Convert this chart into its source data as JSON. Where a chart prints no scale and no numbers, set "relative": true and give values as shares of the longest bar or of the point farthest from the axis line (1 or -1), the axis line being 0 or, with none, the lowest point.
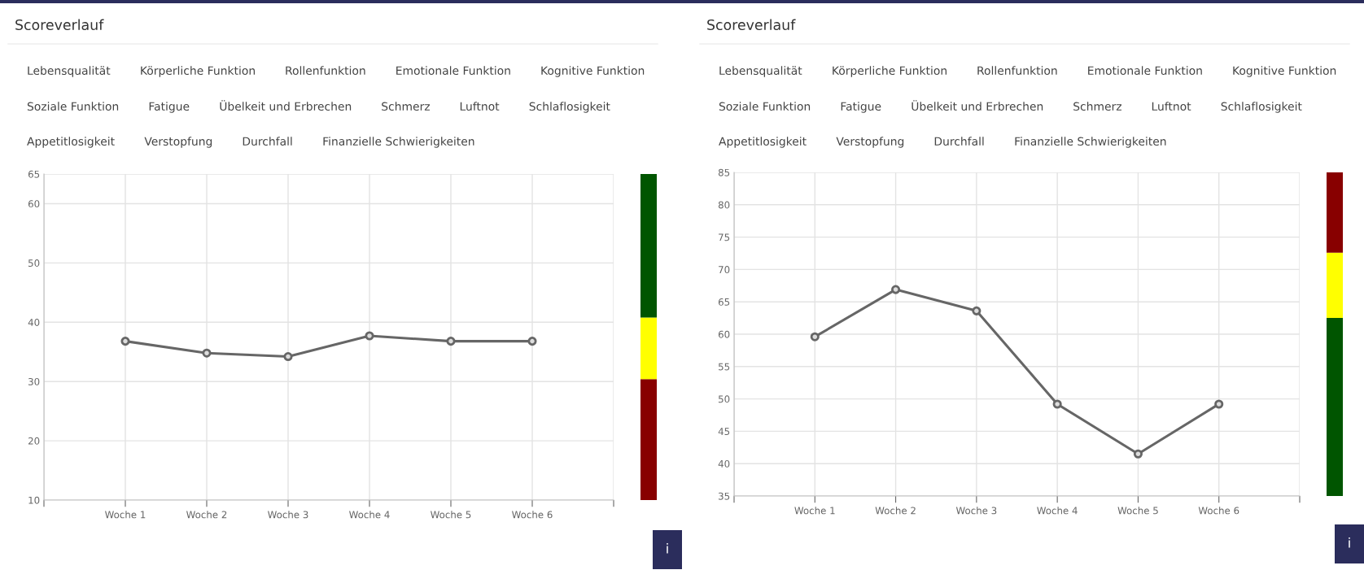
{
  "chart_data": [
    {
      "type": "line",
      "title": "Scoreverlauf",
      "annotations": [
        "Lebensqualität",
        "Körperliche Funktion",
        "Rollenfunktion",
        "Emotionale Funktion",
        "Kognitive Funktion",
        "Soziale Funktion",
        "Fatigue",
        "Übelkeit und Erbrechen",
        "Schmerz",
        "Luftnot",
        "Schlaflosigkeit",
        "Appetitlosigkeit",
        "Verstopfung",
        "Durchfall",
        "Finanzielle Schwierigkeiten",
        "i"
      ],
      "categories": [
        null,
        "Woche 1",
        "Woche 2",
        "Woche 3",
        "Woche 4",
        "Woche 5",
        "Woche 6",
        null
      ],
      "series": [
        {
          "color": "#666666",
          "values": [
            null,
            36.8,
            34.8,
            34.2,
            37.7,
            36.8,
            36.8,
            null
          ]
        }
      ],
      "ylim": [
        10,
        65
      ],
      "yticks": [
        10,
        20,
        30,
        40,
        50,
        60,
        65
      ],
      "grid": true,
      "marker": "circle",
      "line_style": "solid"
    },
    {
      "type": "bar",
      "stacked": true,
      "relative": true,
      "categories": [
        null
      ],
      "series": [
        {
          "color": "#880000",
          "values": [
            0.371
          ]
        },
        {
          "color": "#ffff00",
          "values": [
            0.189
          ]
        },
        {
          "color": "#005500",
          "values": [
            0.44
          ]
        }
      ]
    },
    {
      "type": "line",
      "title": "Scoreverlauf",
      "annotations": [
        "Lebensqualität",
        "Körperliche Funktion",
        "Rollenfunktion",
        "Emotionale Funktion",
        "Kognitive Funktion",
        "Soziale Funktion",
        "Fatigue",
        "Übelkeit und Erbrechen",
        "Schmerz",
        "Luftnot",
        "Schlaflosigkeit",
        "Appetitlosigkeit",
        "Verstopfung",
        "Durchfall",
        "Finanzielle Schwierigkeiten",
        "i"
      ],
      "categories": [
        null,
        "Woche 1",
        "Woche 2",
        "Woche 3",
        "Woche 4",
        "Woche 5",
        "Woche 6",
        null
      ],
      "series": [
        {
          "color": "#666666",
          "values": [
            null,
            59.6,
            66.9,
            63.6,
            49.2,
            41.5,
            49.2,
            null
          ]
        }
      ],
      "ylim": [
        35,
        85
      ],
      "yticks": [
        35,
        40,
        45,
        50,
        55,
        60,
        65,
        70,
        75,
        80,
        85
      ],
      "grid": true,
      "marker": "circle",
      "line_style": "solid"
    },
    {
      "type": "bar",
      "stacked": true,
      "relative": true,
      "categories": [
        null
      ],
      "series": [
        {
          "color": "#005500",
          "values": [
            0.55
          ]
        },
        {
          "color": "#ffff00",
          "values": [
            0.202
          ]
        },
        {
          "color": "#880000",
          "values": [
            0.248
          ]
        }
      ]
    }
  ]
}
